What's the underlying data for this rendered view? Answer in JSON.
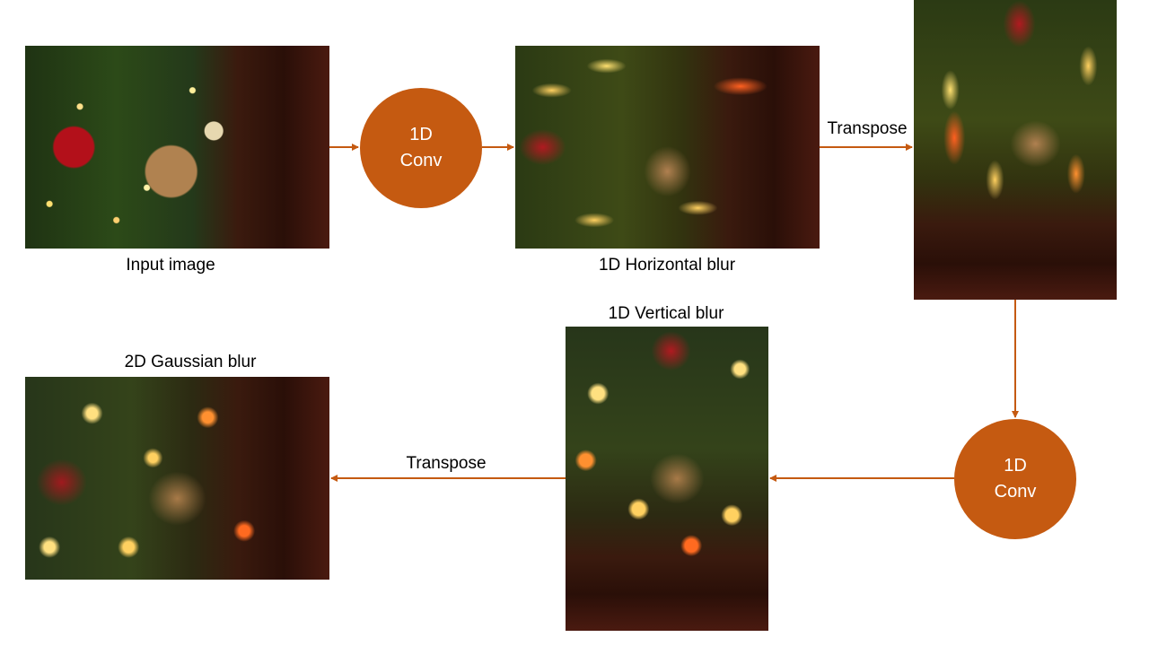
{
  "labels": {
    "input": "Input image",
    "horizontal": "1D Horizontal blur",
    "vertical": "1D Vertical blur",
    "gaussian": "2D Gaussian blur",
    "transpose_top": "Transpose",
    "transpose_bottom": "Transpose"
  },
  "nodes": {
    "conv_top": {
      "line1": "1D",
      "line2": "Conv"
    },
    "conv_bottom": {
      "line1": "1D",
      "line2": "Conv"
    }
  },
  "colors": {
    "accent": "#C55A11",
    "arrow": "#C55A11"
  }
}
